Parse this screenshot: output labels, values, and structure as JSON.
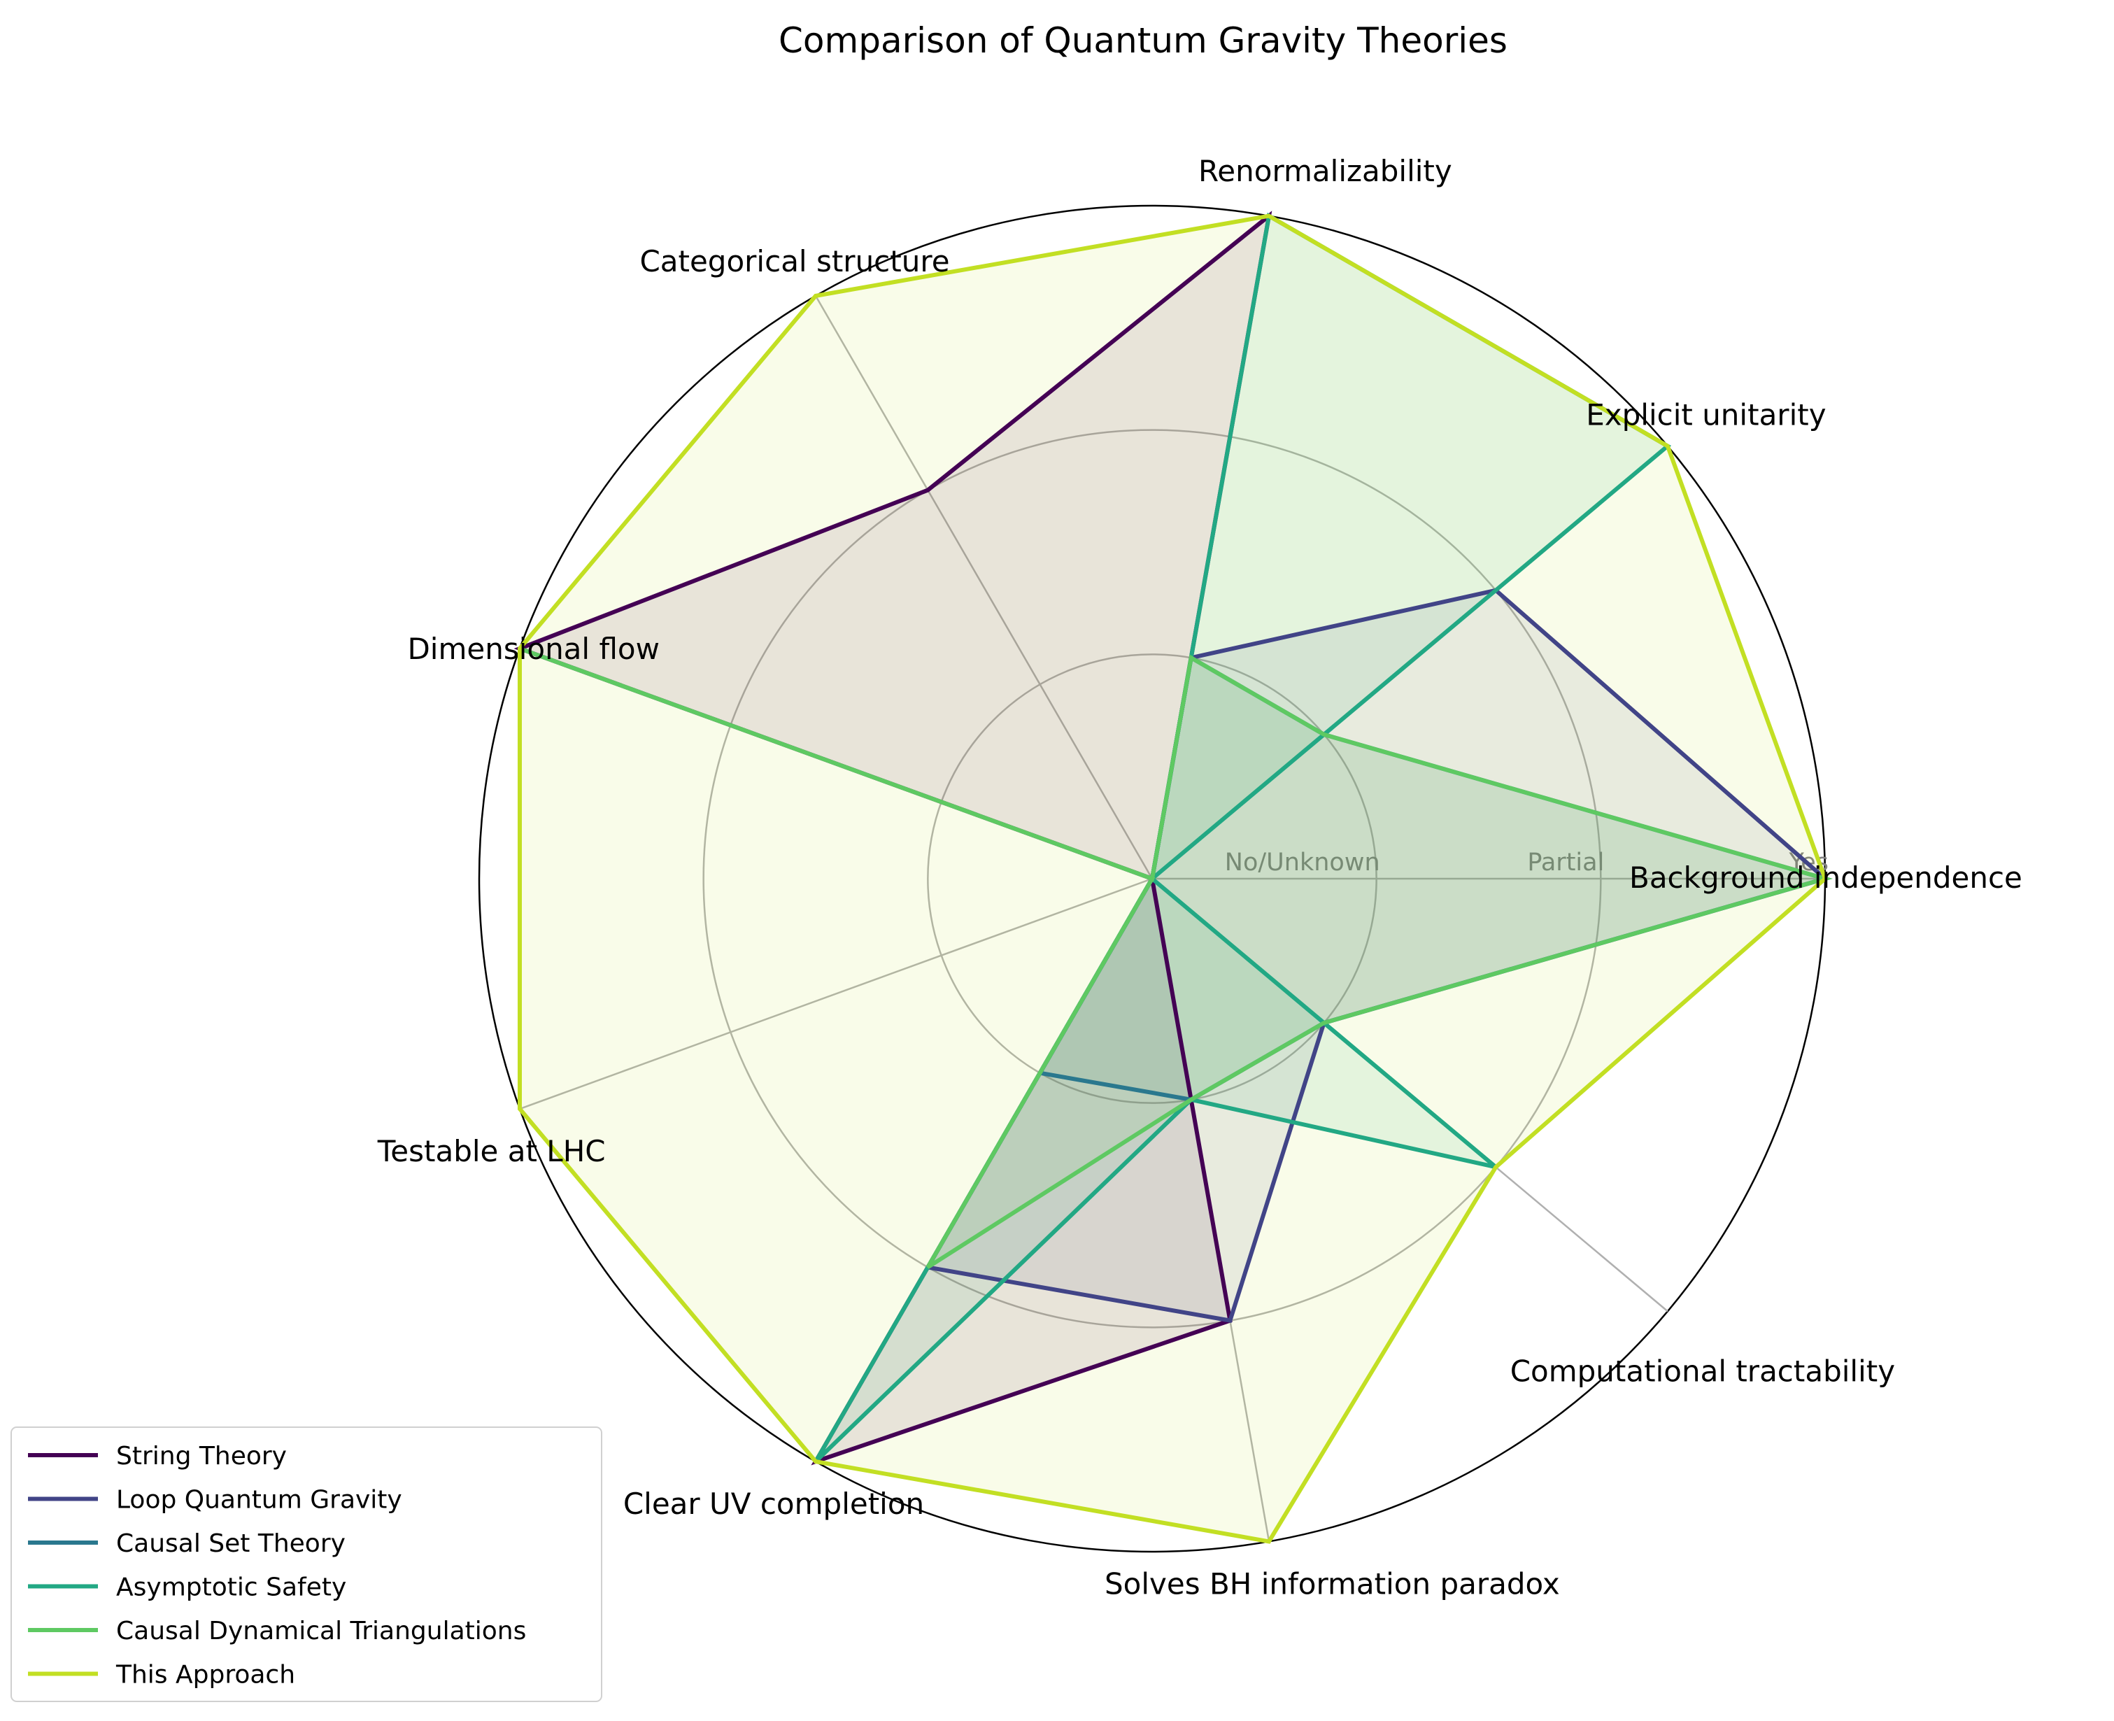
{
  "chart_data": {
    "type": "radar",
    "title": "Comparison of Quantum Gravity Theories",
    "categories": [
      "Background independence",
      "Explicit unitarity",
      "Renormalizability",
      "Categorical structure",
      "Dimensional flow",
      "Testable at LHC",
      "Clear UV completion",
      "Solves BH information paradox",
      "Computational tractability"
    ],
    "rlim": [
      0,
      3
    ],
    "r_ticks": [
      1,
      2,
      3
    ],
    "r_tick_labels": [
      "No/Unknown",
      "Partial",
      "Yes"
    ],
    "grid": true,
    "legend_position": "lower-left",
    "series": [
      {
        "name": "String Theory",
        "color": "#440154",
        "values": [
          0,
          0,
          3,
          2,
          3,
          0,
          3,
          2,
          0
        ]
      },
      {
        "name": "Loop Quantum Gravity",
        "color": "#414487",
        "values": [
          3,
          2,
          1,
          0,
          0,
          0,
          2,
          2,
          1
        ]
      },
      {
        "name": "Causal Set Theory",
        "color": "#2a788e",
        "values": [
          3,
          1,
          1,
          0,
          0,
          0,
          1,
          1,
          1
        ]
      },
      {
        "name": "Asymptotic Safety",
        "color": "#22a884",
        "values": [
          0,
          3,
          3,
          0,
          0,
          0,
          3,
          1,
          2
        ]
      },
      {
        "name": "Causal Dynamical Triangulations",
        "color": "#5ec962",
        "values": [
          3,
          1,
          1,
          0,
          3,
          0,
          2,
          1,
          1
        ]
      },
      {
        "name": "This Approach",
        "color": "#c2df23",
        "values": [
          3,
          3,
          3,
          3,
          3,
          3,
          3,
          3,
          2
        ]
      }
    ]
  }
}
